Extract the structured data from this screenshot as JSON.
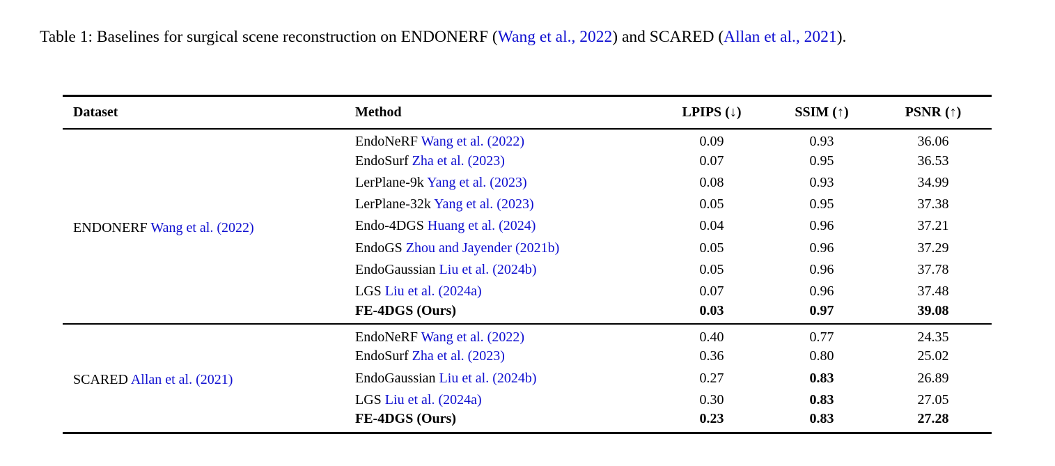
{
  "page": {
    "background_color": "#ffffff",
    "citation_link_color": "#0f0fd0",
    "text_color": "#000000"
  },
  "caption": {
    "segments": [
      {
        "text": "Table 1:  Baselines for surgical scene reconstruction on ENDONERF (",
        "link": false
      },
      {
        "text": "Wang et al., 2022",
        "link": true
      },
      {
        "text": ") and SCARED (",
        "link": false
      },
      {
        "text": "Allan et al., 2021",
        "link": true
      },
      {
        "text": ").",
        "link": false
      }
    ]
  },
  "table": {
    "columns": [
      "Dataset",
      "Method",
      "LPIPS (↓)",
      "SSIM (↑)",
      "PSNR (↑)"
    ],
    "sections": [
      {
        "dataset": {
          "name": "ENDONERF",
          "cite": "Wang et al. (2022)"
        },
        "rows": [
          {
            "method": "EndoNeRF",
            "cite": "Wang et al. (2022)",
            "lpips": "0.09",
            "ssim": "0.93",
            "psnr": "36.06",
            "bold": []
          },
          {
            "method": "EndoSurf",
            "cite": "Zha et al. (2023)",
            "lpips": "0.07",
            "ssim": "0.95",
            "psnr": "36.53",
            "bold": []
          },
          {
            "method": "LerPlane-9k",
            "cite": "Yang et al. (2023)",
            "lpips": "0.08",
            "ssim": "0.93",
            "psnr": "34.99",
            "bold": []
          },
          {
            "method": "LerPlane-32k",
            "cite": "Yang et al. (2023)",
            "lpips": "0.05",
            "ssim": "0.95",
            "psnr": "37.38",
            "bold": []
          },
          {
            "method": "Endo-4DGS",
            "cite": "Huang et al. (2024)",
            "lpips": "0.04",
            "ssim": "0.96",
            "psnr": "37.21",
            "bold": []
          },
          {
            "method": "EndoGS",
            "cite": "Zhou and Jayender (2021b)",
            "lpips": "0.05",
            "ssim": "0.96",
            "psnr": "37.29",
            "bold": []
          },
          {
            "method": "EndoGaussian",
            "cite": "Liu et al. (2024b)",
            "lpips": "0.05",
            "ssim": "0.96",
            "psnr": "37.78",
            "bold": []
          },
          {
            "method": "LGS",
            "cite": "Liu et al. (2024a)",
            "lpips": "0.07",
            "ssim": "0.96",
            "psnr": "37.48",
            "bold": []
          },
          {
            "method": "FE-4DGS (Ours)",
            "cite": "",
            "lpips": "0.03",
            "ssim": "0.97",
            "psnr": "39.08",
            "bold": [
              "method",
              "lpips",
              "ssim",
              "psnr"
            ]
          }
        ]
      },
      {
        "dataset": {
          "name": "SCARED",
          "cite": "Allan et al. (2021)"
        },
        "rows": [
          {
            "method": "EndoNeRF",
            "cite": "Wang et al. (2022)",
            "lpips": "0.40",
            "ssim": "0.77",
            "psnr": "24.35",
            "bold": []
          },
          {
            "method": "EndoSurf",
            "cite": "Zha et al. (2023)",
            "lpips": "0.36",
            "ssim": "0.80",
            "psnr": "25.02",
            "bold": []
          },
          {
            "method": "EndoGaussian",
            "cite": "Liu et al. (2024b)",
            "lpips": "0.27",
            "ssim": "0.83",
            "psnr": "26.89",
            "bold": [
              "ssim"
            ]
          },
          {
            "method": "LGS",
            "cite": "Liu et al. (2024a)",
            "lpips": "0.30",
            "ssim": "0.83",
            "psnr": "27.05",
            "bold": [
              "ssim"
            ]
          },
          {
            "method": "FE-4DGS (Ours)",
            "cite": "",
            "lpips": "0.23",
            "ssim": "0.83",
            "psnr": "27.28",
            "bold": [
              "method",
              "lpips",
              "ssim",
              "psnr"
            ]
          }
        ]
      }
    ]
  }
}
